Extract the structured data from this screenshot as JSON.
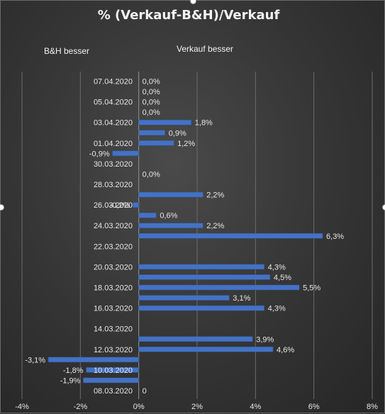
{
  "chart_data": {
    "type": "bar",
    "orientation": "horizontal",
    "title": "% (Verkauf-B&H)/Verkauf",
    "annotations": {
      "left": "B&H besser",
      "right": "Verkauf besser"
    },
    "category_labels": [
      "07.04.2020",
      "05.04.2020",
      "03.04.2020",
      "01.04.2020",
      "30.03.2020",
      "28.03.2020",
      "26.03.2020",
      "24.03.2020",
      "22.03.2020",
      "20.03.2020",
      "18.03.2020",
      "16.03.2020",
      "14.03.2020",
      "12.03.2020",
      "10.03.2020",
      "08.03.2020"
    ],
    "values": [
      0.0,
      0.0,
      0.0,
      0.0,
      1.8,
      0.9,
      1.2,
      -0.9,
      null,
      0.0,
      null,
      2.2,
      -0.2,
      0.6,
      2.2,
      6.3,
      null,
      null,
      4.3,
      4.5,
      5.5,
      3.1,
      4.3,
      null,
      null,
      3.9,
      4.6,
      -3.1,
      -1.8,
      -1.9,
      0.0
    ],
    "data_labels": [
      "0,0%",
      "0,0%",
      "0,0%",
      "0,0%",
      "1,8%",
      "0,9%",
      "1,2%",
      "-0,9%",
      "",
      "0,0%",
      "",
      "2,2%",
      "-0,2%",
      "0,6%",
      "2,2%",
      "6,3%",
      "",
      "",
      "4,3%",
      "4,5%",
      "5,5%",
      "3,1%",
      "4,3%",
      "",
      "",
      "3,9%",
      "4,6%",
      "-3,1%",
      "-1,8%",
      "-1,9%",
      "0"
    ],
    "x_ticks": [
      "-4%",
      "-2%",
      "0%",
      "2%",
      "4%",
      "6%",
      "8%"
    ],
    "x_tick_values": [
      -4,
      -2,
      0,
      2,
      4,
      6,
      8
    ],
    "xlim": [
      -4,
      8
    ],
    "grid": "vertical",
    "bar_color": "#4472c4"
  }
}
